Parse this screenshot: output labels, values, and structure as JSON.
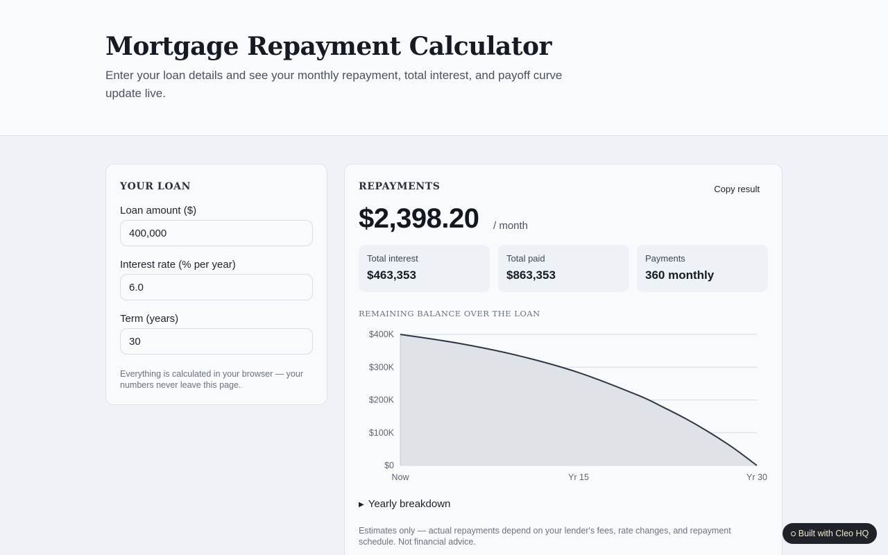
{
  "header": {
    "title": "Mortgage Repayment Calculator",
    "subtitle": "Enter your loan details and see your monthly repayment, total interest, and payoff curve update live."
  },
  "loan": {
    "title": "YOUR LOAN",
    "fields": [
      {
        "label": "Loan amount ($)",
        "value": "400,000"
      },
      {
        "label": "Interest rate (% per year)",
        "value": "6.0"
      },
      {
        "label": "Term (years)",
        "value": "30"
      }
    ],
    "note": "Everything is calculated in your browser — your numbers never leave this page."
  },
  "repayments": {
    "title": "REPAYMENTS",
    "copy_label": "Copy result",
    "monthly": "$2,398.20",
    "monthly_unit": "/ month",
    "stats": [
      {
        "label": "Total interest",
        "value": "$463,353"
      },
      {
        "label": "Total paid",
        "value": "$863,353"
      },
      {
        "label": "Payments",
        "value": "360 monthly"
      }
    ],
    "chart_title": "REMAINING BALANCE OVER THE LOAN",
    "breakdown_label": "Yearly breakdown",
    "disclaimer": "Estimates only — actual repayments depend on your lender's fees, rate changes, and repayment schedule. Not financial advice."
  },
  "chart_data": {
    "type": "area",
    "title": "REMAINING BALANCE OVER THE LOAN",
    "x_ticks": [
      "Now",
      "Yr 15",
      "Yr 30"
    ],
    "y_ticks": [
      "$400K",
      "$300K",
      "$200K",
      "$100K",
      "$0"
    ],
    "ylim": [
      0,
      400000
    ],
    "xlim": [
      0,
      30
    ],
    "x_years": [
      0,
      5,
      10,
      15,
      20,
      22,
      24,
      26,
      28,
      30
    ],
    "balance": [
      400000,
      372216,
      334564,
      283533,
      214368,
      180000,
      143000,
      101000,
      54000,
      0
    ],
    "colors": {
      "line": "#2e3746",
      "fill": "#dfe3e8",
      "grid": "#d6dbe2"
    }
  },
  "badge": {
    "label": "Built with Cleo HQ"
  }
}
